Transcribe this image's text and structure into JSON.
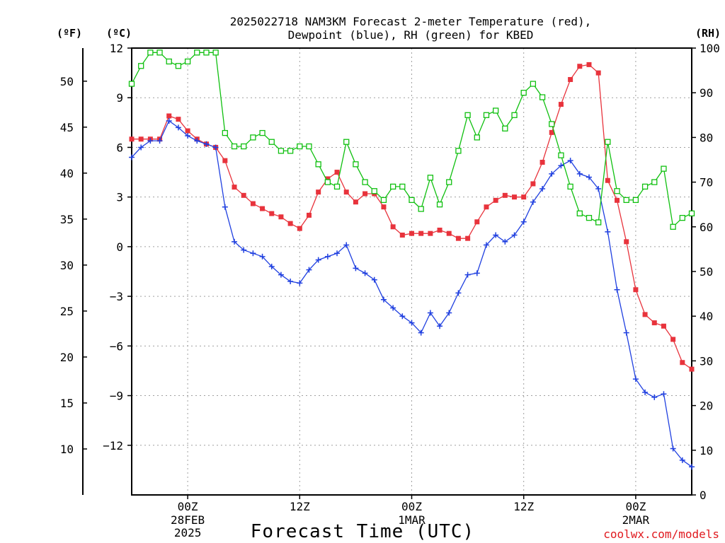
{
  "title_line1": "2025022718 NAM3KM Forecast 2-meter Temperature (red),",
  "title_line2": "Dewpoint (blue), RH (green) for KBED",
  "credit": "coolwx.com/models",
  "colors": {
    "temperature": "#e8333c",
    "dewpoint": "#2040e0",
    "rh": "#10c010",
    "grid": "#a0a0a0"
  },
  "chart_data": {
    "type": "line",
    "title": "2025022718 NAM3KM Forecast 2-meter Temperature (red), Dewpoint (blue), RH (green) for KBED",
    "xlabel": "Forecast Time (UTC)",
    "x_start": "2025-02-27 18Z",
    "x_step_hours": 1,
    "x_ticks": [
      {
        "label": "00Z",
        "sub": [
          "28FEB",
          "2025"
        ],
        "index": 6
      },
      {
        "label": "12Z",
        "sub": [],
        "index": 18
      },
      {
        "label": "00Z",
        "sub": [
          "1MAR"
        ],
        "index": 30
      },
      {
        "label": "12Z",
        "sub": [],
        "index": 42
      },
      {
        "label": "00Z",
        "sub": [
          "2MAR"
        ],
        "index": 54
      }
    ],
    "axes": {
      "celsius": {
        "unit": "(ºC)",
        "ylim": [
          -15.0,
          12.0
        ],
        "ticks": [
          12,
          9,
          6,
          3,
          0,
          -3,
          -6,
          -9,
          -12
        ]
      },
      "fahrenheit": {
        "unit": "(ºF)",
        "ticks": [
          50,
          45,
          40,
          35,
          30,
          25,
          20,
          15,
          10
        ]
      },
      "rh": {
        "unit": "(RH)",
        "ylim": [
          0,
          100
        ],
        "ticks": [
          100,
          90,
          80,
          70,
          60,
          50,
          40,
          30,
          20,
          10,
          0
        ]
      }
    },
    "grid": true,
    "series": [
      {
        "name": "Temperature",
        "axis": "celsius",
        "values": [
          6.5,
          6.5,
          6.5,
          6.5,
          7.9,
          7.7,
          7.0,
          6.5,
          6.2,
          6.0,
          5.2,
          3.6,
          3.1,
          2.6,
          2.3,
          2.0,
          1.8,
          1.4,
          1.1,
          1.9,
          3.3,
          4.1,
          4.5,
          3.3,
          2.7,
          3.2,
          3.2,
          2.4,
          1.2,
          0.7,
          0.8,
          0.8,
          0.8,
          1.0,
          0.8,
          0.5,
          0.5,
          1.5,
          2.4,
          2.8,
          3.1,
          3.0,
          3.0,
          3.8,
          5.1,
          6.9,
          8.6,
          10.1,
          10.9,
          11.0,
          10.5,
          4.0,
          2.8,
          0.3,
          -2.6,
          -4.1,
          -4.6,
          -4.8,
          -5.6,
          -7.0,
          -7.4
        ]
      },
      {
        "name": "Dewpoint",
        "axis": "celsius",
        "values": [
          5.4,
          6.0,
          6.4,
          6.4,
          7.6,
          7.2,
          6.7,
          6.4,
          6.2,
          6.0,
          2.4,
          0.3,
          -0.2,
          -0.4,
          -0.6,
          -1.2,
          -1.7,
          -2.1,
          -2.2,
          -1.4,
          -0.8,
          -0.6,
          -0.4,
          0.1,
          -1.3,
          -1.6,
          -2.0,
          -3.2,
          -3.7,
          -4.2,
          -4.6,
          -5.2,
          -4.0,
          -4.8,
          -4.0,
          -2.8,
          -1.7,
          -1.6,
          0.1,
          0.7,
          0.3,
          0.7,
          1.5,
          2.7,
          3.5,
          4.4,
          4.9,
          5.2,
          4.4,
          4.2,
          3.5,
          0.9,
          -2.6,
          -5.2,
          -8.0,
          -8.8,
          -9.1,
          -8.9,
          -12.2,
          -12.9,
          -13.3
        ]
      },
      {
        "name": "RH",
        "axis": "rh",
        "values": [
          92,
          96,
          99,
          99,
          97,
          96,
          97,
          99,
          99,
          99,
          81,
          78,
          78,
          80,
          81,
          79,
          77,
          77,
          78,
          78,
          74,
          70,
          69,
          79,
          74,
          70,
          68,
          66,
          69,
          69,
          66,
          64,
          71,
          65,
          70,
          77,
          85,
          80,
          85,
          86,
          82,
          85,
          90,
          92,
          89,
          83,
          76,
          69,
          63,
          62,
          61,
          79,
          68,
          66,
          66,
          69,
          70,
          73,
          60,
          62,
          63
        ]
      }
    ]
  }
}
